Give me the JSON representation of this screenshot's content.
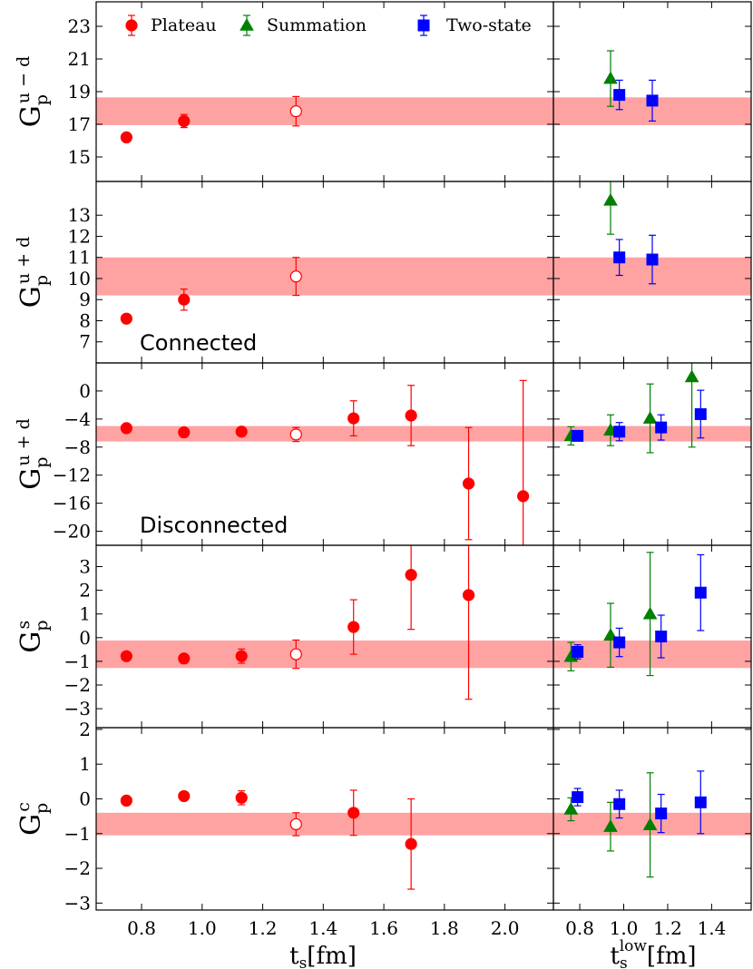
{
  "chart_data": {
    "type": "scatter",
    "legend": {
      "placement": "top",
      "entries": [
        {
          "name": "Plateau",
          "marker": "circle",
          "color": "#ff0000"
        },
        {
          "name": "Summation",
          "marker": "triangle",
          "color": "#008000"
        },
        {
          "name": "Two-state",
          "marker": "square",
          "color": "#0000ff"
        }
      ]
    },
    "x_left": {
      "label_main": "t",
      "label_sub": "s",
      "label_unit": "[fm]",
      "range": [
        0.65,
        2.16
      ],
      "ticks": [
        0.8,
        1.0,
        1.2,
        1.4,
        1.6,
        1.8,
        2.0
      ],
      "tick_labels": [
        "0.8",
        "1.0",
        "1.2",
        "1.4",
        "1.6",
        "1.8",
        "2.0"
      ]
    },
    "x_right": {
      "label_main": "t",
      "label_sub": "s",
      "label_sup": "low",
      "label_unit": "[fm]",
      "range": [
        0.68,
        1.58
      ],
      "ticks": [
        0.8,
        1.0,
        1.2,
        1.4
      ],
      "tick_labels": [
        "0.8",
        "1.0",
        "1.2",
        "1.4"
      ]
    },
    "panels": [
      {
        "ylabel": {
          "main": "G",
          "sub": "p",
          "sup": "u − d"
        },
        "ylim": [
          13.5,
          24.5
        ],
        "yticks": [
          15,
          17,
          19,
          21,
          23
        ],
        "ytick_labels": [
          "15",
          "17",
          "19",
          "21",
          "23"
        ],
        "band": [
          16.95,
          18.65
        ],
        "annotation": "",
        "plateau": [
          {
            "x": 0.75,
            "y": 16.2,
            "err": 0.15,
            "open": false
          },
          {
            "x": 0.94,
            "y": 17.2,
            "err": 0.4,
            "open": false
          },
          {
            "x": 1.31,
            "y": 17.8,
            "err": 0.9,
            "open": true
          }
        ],
        "summation": [
          {
            "x": 0.94,
            "y": 19.8,
            "err": 1.7
          }
        ],
        "twostate": [
          {
            "x": 0.98,
            "y": 18.8,
            "err": 0.9
          },
          {
            "x": 1.13,
            "y": 18.45,
            "err": 1.25
          }
        ]
      },
      {
        "ylabel": {
          "main": "G",
          "sub": "p",
          "sup": "u + d"
        },
        "ylim": [
          6.0,
          14.6
        ],
        "yticks": [
          7,
          8,
          9,
          10,
          11,
          12,
          13
        ],
        "ytick_labels": [
          "7",
          "8",
          "9",
          "10",
          "11",
          "12",
          "13"
        ],
        "band": [
          9.2,
          11.0
        ],
        "annotation": "Connected",
        "plateau": [
          {
            "x": 0.75,
            "y": 8.1,
            "err": 0.15,
            "open": false
          },
          {
            "x": 0.94,
            "y": 9.0,
            "err": 0.5,
            "open": false
          },
          {
            "x": 1.31,
            "y": 10.1,
            "err": 0.9,
            "open": true
          }
        ],
        "summation": [
          {
            "x": 0.94,
            "y": 13.7,
            "err": 1.6
          }
        ],
        "twostate": [
          {
            "x": 0.98,
            "y": 11.0,
            "err": 0.85
          },
          {
            "x": 1.13,
            "y": 10.9,
            "err": 1.15
          }
        ]
      },
      {
        "ylabel": {
          "main": "G",
          "sub": "p",
          "sup": "u + d"
        },
        "ylim": [
          -22.0,
          4.0
        ],
        "yticks": [
          0,
          -4,
          -8,
          -12,
          -16,
          -20
        ],
        "ytick_labels": [
          "0",
          "−4",
          "−8",
          "−12",
          "−16",
          "−20"
        ],
        "band": [
          -7.2,
          -5.0
        ],
        "annotation": "Disconnected",
        "plateau": [
          {
            "x": 0.75,
            "y": -5.3,
            "err": 0.3,
            "open": false
          },
          {
            "x": 0.94,
            "y": -5.9,
            "err": 0.4,
            "open": false
          },
          {
            "x": 1.13,
            "y": -5.8,
            "err": 0.4,
            "open": false
          },
          {
            "x": 1.31,
            "y": -6.2,
            "err": 1.0,
            "open": true
          },
          {
            "x": 1.5,
            "y": -3.9,
            "err": 2.5,
            "open": false
          },
          {
            "x": 1.69,
            "y": -3.5,
            "err": 4.3,
            "open": false
          },
          {
            "x": 1.88,
            "y": -13.2,
            "err": 8.0,
            "open": false
          },
          {
            "x": 2.06,
            "y": -15.0,
            "err": 16.5,
            "open": false
          }
        ],
        "summation": [
          {
            "x": 0.76,
            "y": -6.4,
            "err": 1.3
          },
          {
            "x": 0.94,
            "y": -5.6,
            "err": 2.2
          },
          {
            "x": 1.12,
            "y": -3.9,
            "err": 4.9
          },
          {
            "x": 1.31,
            "y": 2.0,
            "err": 10.0
          }
        ],
        "twostate": [
          {
            "x": 0.79,
            "y": -6.4,
            "err": 0.6
          },
          {
            "x": 0.98,
            "y": -5.8,
            "err": 1.3
          },
          {
            "x": 1.17,
            "y": -5.2,
            "err": 1.8
          },
          {
            "x": 1.35,
            "y": -3.3,
            "err": 3.4
          }
        ]
      },
      {
        "ylabel": {
          "main": "G",
          "sub": "p",
          "sup": "s"
        },
        "ylim": [
          -3.8,
          3.9
        ],
        "yticks": [
          3,
          2,
          1,
          0,
          -1,
          -2,
          -3
        ],
        "ytick_labels": [
          "3",
          "2",
          "1",
          "0",
          "−1",
          "−2",
          "−3"
        ],
        "band": [
          -1.28,
          -0.12
        ],
        "annotation": "",
        "plateau": [
          {
            "x": 0.75,
            "y": -0.78,
            "err": 0.1,
            "open": false
          },
          {
            "x": 0.94,
            "y": -0.88,
            "err": 0.1,
            "open": false
          },
          {
            "x": 1.13,
            "y": -0.78,
            "err": 0.3,
            "open": false
          },
          {
            "x": 1.31,
            "y": -0.7,
            "err": 0.6,
            "open": true
          },
          {
            "x": 1.5,
            "y": 0.45,
            "err": 1.15,
            "open": false
          },
          {
            "x": 1.69,
            "y": 2.65,
            "err": 2.3,
            "open": false
          },
          {
            "x": 1.88,
            "y": 1.8,
            "err": 4.4,
            "open": false
          }
        ],
        "summation": [
          {
            "x": 0.76,
            "y": -0.8,
            "err": 0.6
          },
          {
            "x": 0.94,
            "y": 0.1,
            "err": 1.35
          },
          {
            "x": 1.12,
            "y": 1.0,
            "err": 2.6
          }
        ],
        "twostate": [
          {
            "x": 0.79,
            "y": -0.6,
            "err": 0.3
          },
          {
            "x": 0.98,
            "y": -0.2,
            "err": 0.6
          },
          {
            "x": 1.17,
            "y": 0.05,
            "err": 0.9
          },
          {
            "x": 1.35,
            "y": 1.9,
            "err": 1.6
          }
        ]
      },
      {
        "ylabel": {
          "main": "G",
          "sub": "p",
          "sup": "c"
        },
        "ylim": [
          -3.2,
          2.05
        ],
        "yticks": [
          2,
          1,
          0,
          -1,
          -2,
          -3
        ],
        "ytick_labels": [
          "2",
          "1",
          "0",
          "−1",
          "−2",
          "−3"
        ],
        "band": [
          -1.05,
          -0.4
        ],
        "annotation": "",
        "plateau": [
          {
            "x": 0.75,
            "y": -0.05,
            "err": 0.05,
            "open": false
          },
          {
            "x": 0.94,
            "y": 0.08,
            "err": 0.05,
            "open": false
          },
          {
            "x": 1.13,
            "y": 0.03,
            "err": 0.2,
            "open": false
          },
          {
            "x": 1.31,
            "y": -0.73,
            "err": 0.33,
            "open": true
          },
          {
            "x": 1.5,
            "y": -0.4,
            "err": 0.65,
            "open": false
          },
          {
            "x": 1.69,
            "y": -1.3,
            "err": 1.3,
            "open": false
          }
        ],
        "summation": [
          {
            "x": 0.76,
            "y": -0.3,
            "err": 0.33
          },
          {
            "x": 0.94,
            "y": -0.8,
            "err": 0.7
          },
          {
            "x": 1.12,
            "y": -0.75,
            "err": 1.5
          }
        ],
        "twostate": [
          {
            "x": 0.79,
            "y": 0.05,
            "err": 0.25
          },
          {
            "x": 0.98,
            "y": -0.15,
            "err": 0.4
          },
          {
            "x": 1.17,
            "y": -0.42,
            "err": 0.55
          },
          {
            "x": 1.35,
            "y": -0.1,
            "err": 0.9
          }
        ]
      }
    ]
  }
}
